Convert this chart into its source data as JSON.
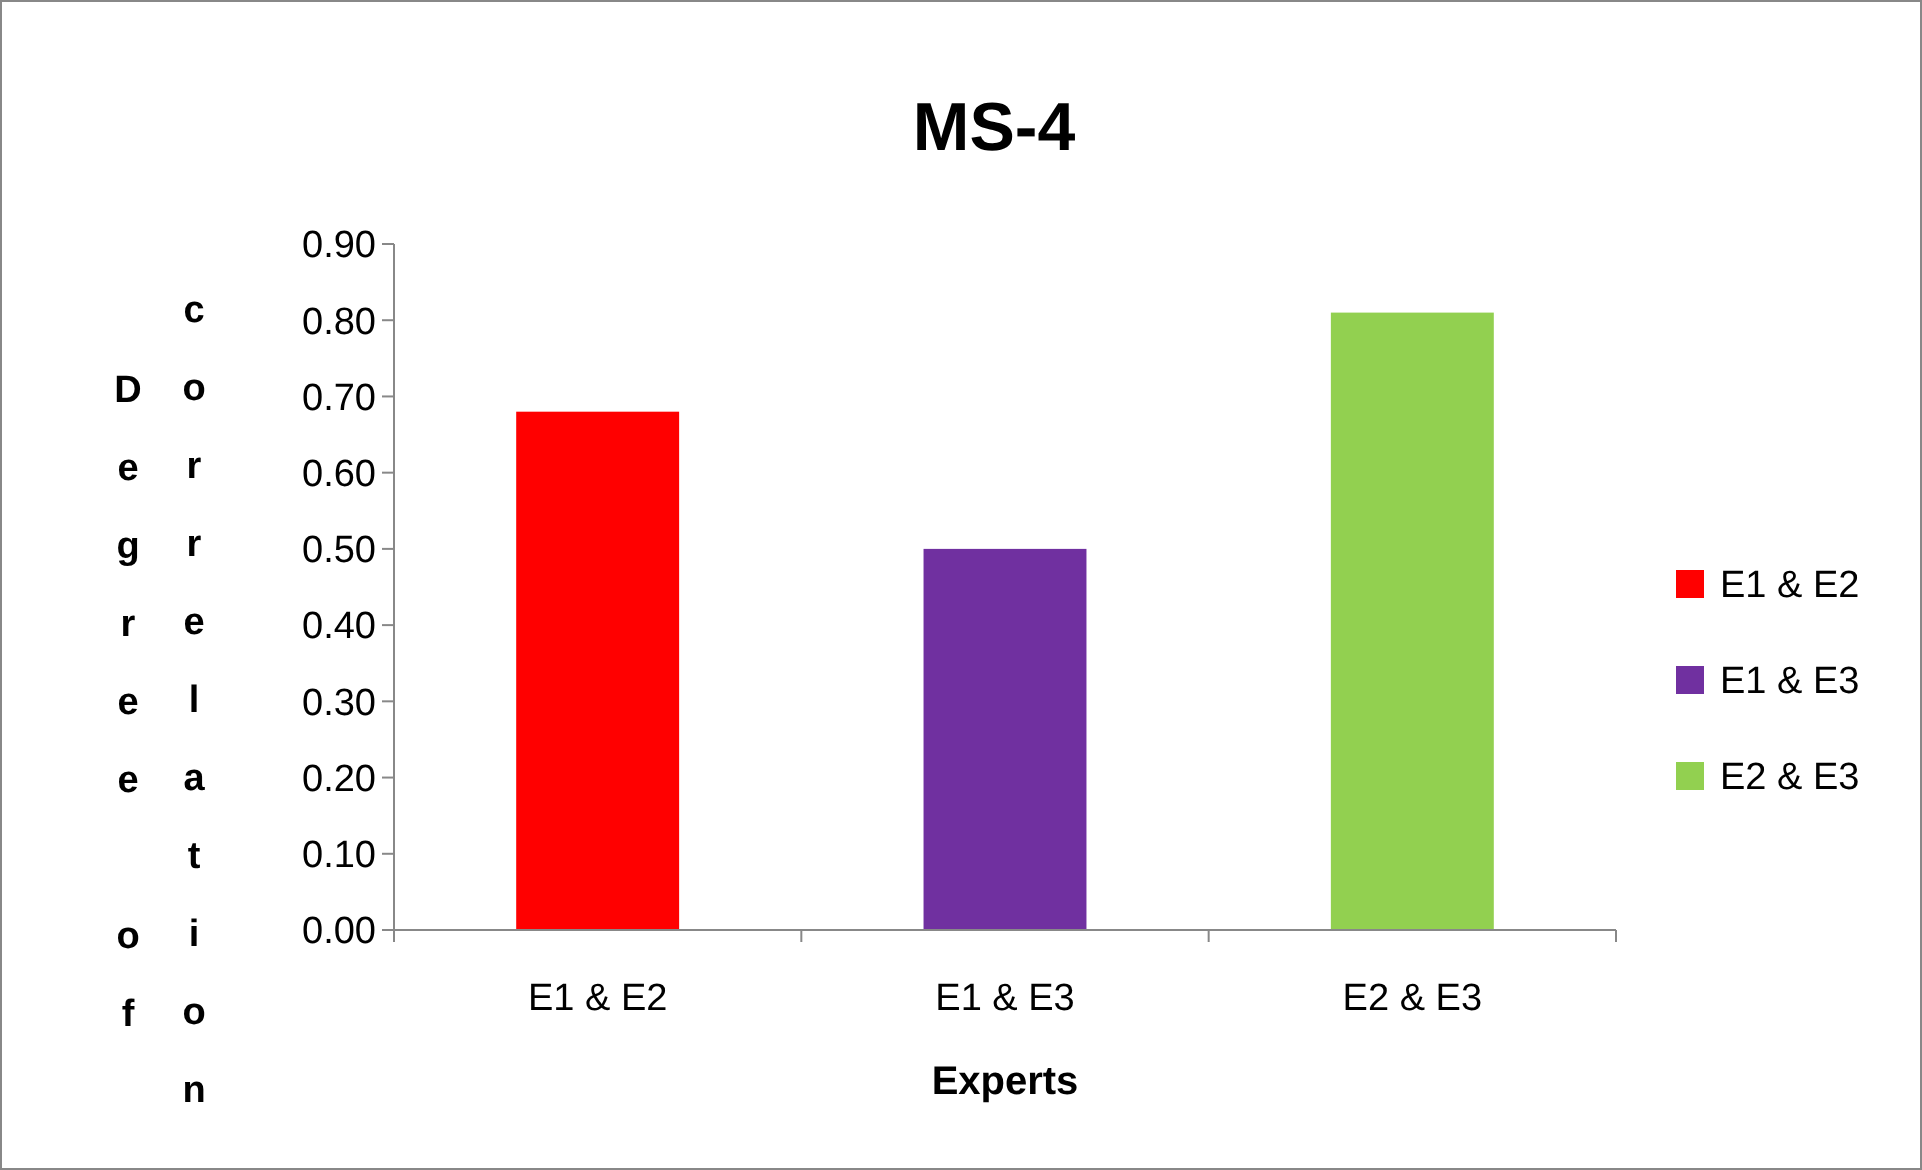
{
  "chart_data": {
    "type": "bar",
    "title": "MS-4",
    "xlabel": "Experts",
    "ylabel": "Degree of correlation",
    "categories": [
      "E1 & E2",
      "E1 & E3",
      "E2 & E3"
    ],
    "series": [
      {
        "name": "E1 & E2",
        "color": "#ff0000",
        "values": [
          0.68,
          null,
          null
        ]
      },
      {
        "name": "E1 & E3",
        "color": "#7030a0",
        "values": [
          null,
          0.5,
          null
        ]
      },
      {
        "name": "E2 & E3",
        "color": "#92d050",
        "values": [
          null,
          null,
          0.81
        ]
      }
    ],
    "stacked": true,
    "ylim": [
      0,
      0.9
    ],
    "yticks": [
      {
        "value": 0,
        "label": "0.00"
      },
      {
        "value": 0.1,
        "label": "0.10"
      },
      {
        "value": 0.2,
        "label": "0.20"
      },
      {
        "value": 0.3,
        "label": "0.30"
      },
      {
        "value": 0.4,
        "label": "0.40"
      },
      {
        "value": 0.5,
        "label": "0.50"
      },
      {
        "value": 0.6,
        "label": "0.60"
      },
      {
        "value": 0.7,
        "label": "0.70"
      },
      {
        "value": 0.8,
        "label": "0.80"
      },
      {
        "value": 0.9,
        "label": "0.90"
      }
    ],
    "grid": false,
    "legend": "right"
  }
}
